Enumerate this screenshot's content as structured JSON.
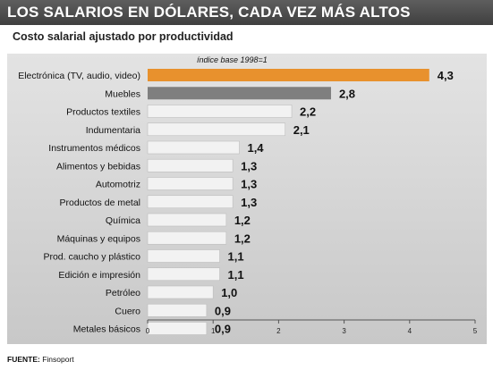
{
  "header": {
    "title": "LOS SALARIOS EN DÓLARES, CADA VEZ MÁS ALTOS",
    "subtitle": "Costo salarial ajustado por productividad"
  },
  "footer": {
    "source_label": "FUENTE:",
    "source_value": "Finsoport"
  },
  "colors": {
    "highlight": "#e8912d",
    "second": "#7f7f7f",
    "default": "#f2f2f2",
    "title_bg": "#4a4a4a"
  },
  "chart_data": {
    "type": "bar",
    "orientation": "horizontal",
    "title": "LOS SALARIOS EN DÓLARES, CADA VEZ MÁS ALTOS",
    "subtitle": "Costo salarial ajustado por productividad",
    "annotation": "índice base 1998=1",
    "categories": [
      "Electrónica (TV, audio, video)",
      "Muebles",
      "Productos textiles",
      "Indumentaria",
      "Instrumentos médicos",
      "Alimentos y bebidas",
      "Automotriz",
      "Productos de metal",
      "Química",
      "Máquinas y equipos",
      "Prod. caucho y plástico",
      "Edición e impresión",
      "Petróleo",
      "Cuero",
      "Metales básicos"
    ],
    "values": [
      4.3,
      2.8,
      2.2,
      2.1,
      1.4,
      1.3,
      1.3,
      1.3,
      1.2,
      1.2,
      1.1,
      1.1,
      1.0,
      0.9,
      0.9
    ],
    "value_labels": [
      "4,3",
      "2,8",
      "2,2",
      "2,1",
      "1,4",
      "1,3",
      "1,3",
      "1,3",
      "1,2",
      "1,2",
      "1,1",
      "1,1",
      "1,0",
      "0,9",
      "0,9"
    ],
    "xlim": [
      0,
      5
    ],
    "xticks": [
      "0",
      "1",
      "2",
      "3",
      "4",
      "5"
    ],
    "grid": false
  }
}
